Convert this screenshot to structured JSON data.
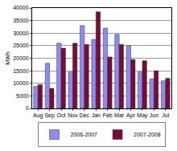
{
  "chart_data": {
    "type": "bar",
    "y_label": "MWh",
    "categories": [
      "Aug",
      "Sep",
      "Oct",
      "Nov",
      "Dec",
      "Jan",
      "Feb",
      "Mar",
      "Apr",
      "May",
      "Jun",
      "Jul"
    ],
    "series": [
      {
        "name": "2006-2007",
        "color": "#8c8cf0",
        "values": [
          8800,
          18000,
          26000,
          14500,
          33000,
          27500,
          32000,
          29500,
          25000,
          14500,
          11800,
          11000
        ]
      },
      {
        "name": "2007-2008",
        "color": "#7a0a3a",
        "values": [
          9500,
          8000,
          24000,
          26000,
          25500,
          38500,
          20500,
          25500,
          19500,
          19000,
          15000,
          12000
        ]
      }
    ],
    "ylim": [
      0,
      40000
    ],
    "yticks": [
      0,
      5000,
      10000,
      15000,
      20000,
      25000,
      30000,
      35000,
      40000
    ],
    "grid": true,
    "legend": "bottom"
  }
}
